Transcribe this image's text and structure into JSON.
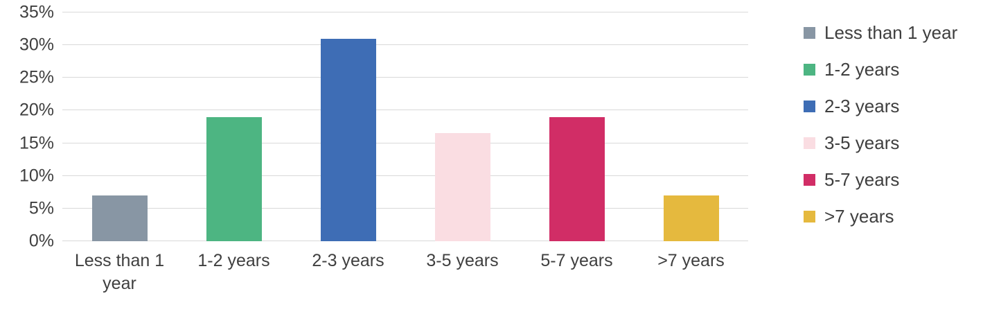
{
  "chart_data": {
    "type": "bar",
    "title": "",
    "xlabel": "",
    "ylabel": "",
    "categories": [
      "Less than 1 year",
      "1-2 years",
      "2-3 years",
      "3-5 years",
      "5-7 years",
      ">7 years"
    ],
    "values": [
      7,
      19,
      31,
      16.5,
      19,
      7
    ],
    "bar_colors": [
      "#8896a4",
      "#4db582",
      "#3e6db5",
      "#fadde2",
      "#d12d66",
      "#e5b93e"
    ],
    "ylim": [
      0,
      35
    ],
    "ytick_step": 5,
    "ytick_labels": [
      "0%",
      "5%",
      "10%",
      "15%",
      "20%",
      "25%",
      "30%",
      "35%"
    ],
    "grid": true,
    "gridline_color": "#d9d9d9",
    "legend_position": "right",
    "legend": [
      {
        "label": "Less than 1 year",
        "color": "#8896a4"
      },
      {
        "label": "1-2 years",
        "color": "#4db582"
      },
      {
        "label": "2-3 years",
        "color": "#3e6db5"
      },
      {
        "label": "3-5 years",
        "color": "#fadde2"
      },
      {
        "label": "5-7 years",
        "color": "#d12d66"
      },
      {
        "label": ">7 years",
        "color": "#e5b93e"
      }
    ]
  }
}
